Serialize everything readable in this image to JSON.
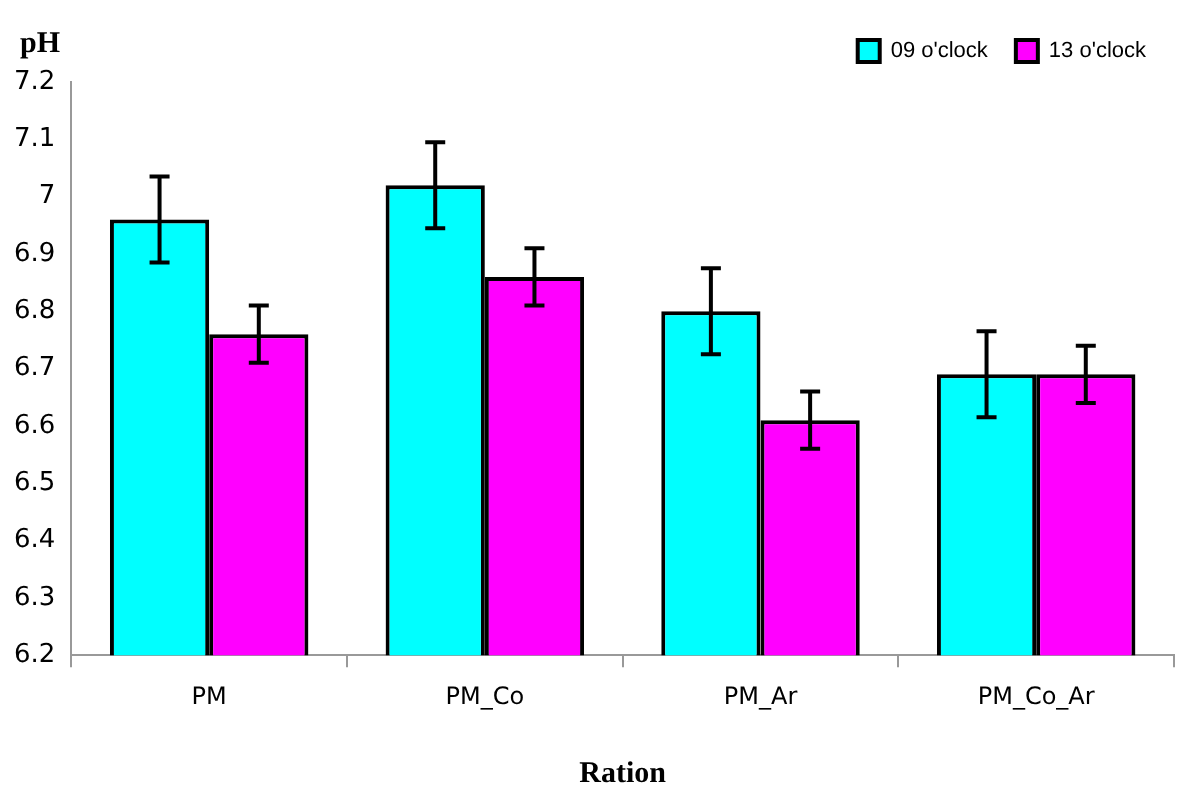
{
  "chart_data": {
    "type": "bar",
    "ylabel": "pH",
    "xlabel": "Ration",
    "categories": [
      "PM",
      "PM_Co",
      "PM_Ar",
      "PM_Co_Ar"
    ],
    "series": [
      {
        "name": "09 o'clock",
        "color": "#00ffff",
        "values": [
          6.96,
          7.02,
          6.8,
          6.69
        ],
        "errors": [
          0.075,
          0.075,
          0.075,
          0.075
        ]
      },
      {
        "name": "13 o'clock",
        "color": "#ff00ff",
        "values": [
          6.76,
          6.86,
          6.61,
          6.69
        ],
        "errors": [
          0.05,
          0.05,
          0.05,
          0.05
        ]
      }
    ],
    "ylim": [
      6.2,
      7.2
    ],
    "yticks": [
      6.2,
      6.3,
      6.4,
      6.5,
      6.6,
      6.7,
      6.8,
      6.9,
      7,
      7.1,
      7.2
    ],
    "grid": false,
    "legend": "top right"
  }
}
